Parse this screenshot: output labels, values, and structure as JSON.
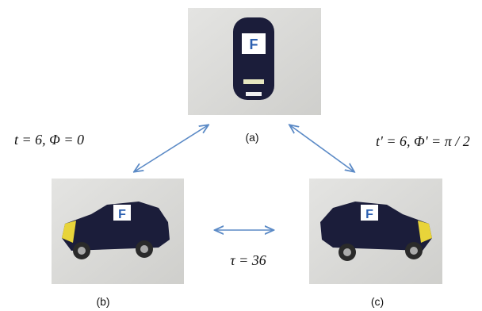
{
  "panels": [
    {
      "label": "(a)"
    },
    {
      "label": "(b)"
    },
    {
      "label": "(c)"
    }
  ],
  "relations": [
    {
      "text": "t = 6, Φ = 0"
    },
    {
      "text": "t' = 6, Φ' = π / 2"
    },
    {
      "text": "τ = 36"
    }
  ]
}
